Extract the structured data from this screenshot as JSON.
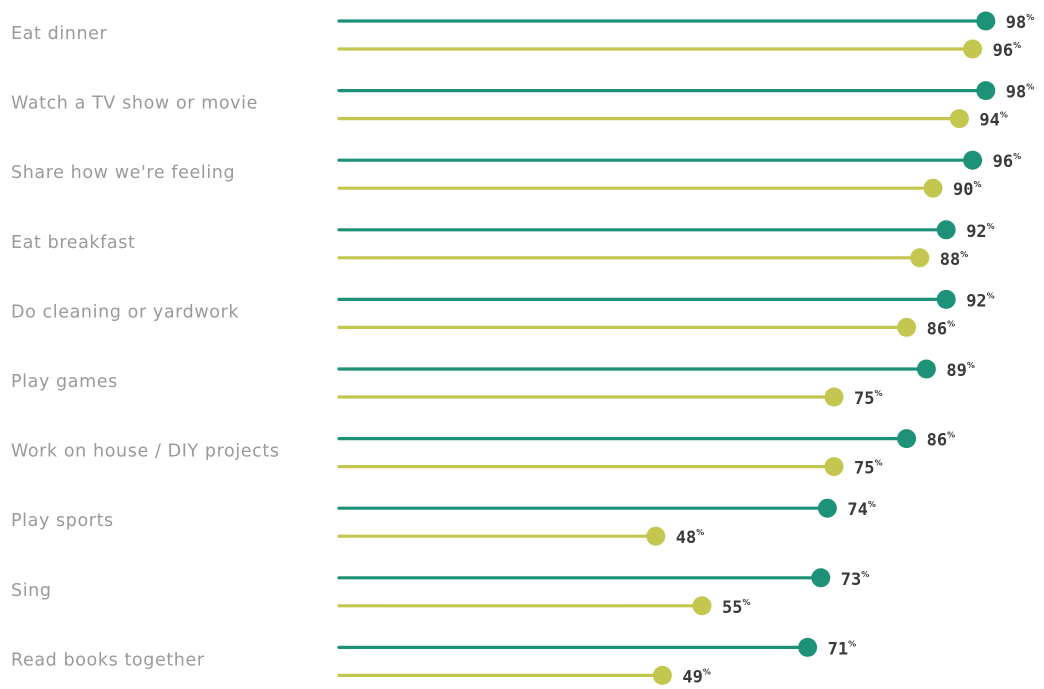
{
  "chart_data": {
    "type": "lollipop",
    "categories": [
      "Eat dinner",
      "Watch a TV show or movie",
      "Share how we're feeling",
      "Eat breakfast",
      "Do cleaning or yardwork",
      "Play games",
      "Work on house / DIY projects",
      "Play sports",
      "Sing",
      "Read books together"
    ],
    "series": [
      {
        "color": "#1e9278",
        "values": [
          98,
          98,
          96,
          92,
          92,
          89,
          86,
          74,
          73,
          71
        ]
      },
      {
        "color": "#c4c74f",
        "values": [
          96,
          94,
          90,
          88,
          86,
          75,
          75,
          48,
          55,
          49
        ]
      }
    ],
    "value_suffix": "%",
    "xlim": [
      0,
      100
    ],
    "grid": false,
    "legend": "none"
  }
}
